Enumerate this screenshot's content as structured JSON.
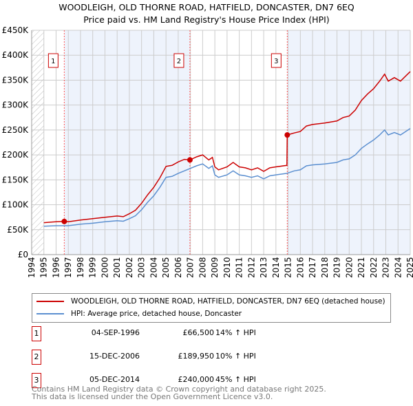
{
  "title": "WOODLEIGH, OLD THORNE ROAD, HATFIELD, DONCASTER, DN7 6EQ",
  "subtitle": "Price paid vs. HM Land Registry's House Price Index (HPI)",
  "colors": {
    "property": "#cc0000",
    "hpi": "#5b8fd0",
    "shade": "#eef3fc",
    "grid": "#cccccc"
  },
  "chart_data": {
    "type": "line",
    "title": "Price paid vs. HM Land Registry's House Price Index (HPI)",
    "xlim": [
      1994,
      2025
    ],
    "ylim": [
      0,
      450000
    ],
    "yticks": [
      0,
      50000,
      100000,
      150000,
      200000,
      250000,
      300000,
      350000,
      400000,
      450000
    ],
    "ytick_labels": [
      "£0",
      "£50K",
      "£100K",
      "£150K",
      "£200K",
      "£250K",
      "£300K",
      "£350K",
      "£400K",
      "£450K"
    ],
    "xticks": [
      "1994",
      "1995",
      "1996",
      "1997",
      "1998",
      "1999",
      "2000",
      "2001",
      "2002",
      "2003",
      "2004",
      "2005",
      "2006",
      "2007",
      "2008",
      "2009",
      "2010",
      "2011",
      "2012",
      "2013",
      "2014",
      "2015",
      "2016",
      "2017",
      "2018",
      "2019",
      "2020",
      "2021",
      "2022",
      "2023",
      "2024",
      "2025"
    ],
    "grid": true,
    "series": [
      {
        "name": "WOODLEIGH, OLD THORNE ROAD, HATFIELD, DONCASTER, DN7 6EQ (detached house)",
        "color": "#cc0000",
        "x": [
          1995,
          1995.5,
          1996,
          1996.67,
          1997,
          1998,
          1999,
          2000,
          2001,
          2001.5,
          2002,
          2002.5,
          2003,
          2003.5,
          2004,
          2004.5,
          2005,
          2005.5,
          2006,
          2006.5,
          2006.96,
          2007.5,
          2008,
          2008.5,
          2008.8,
          2009,
          2009.3,
          2010,
          2010.5,
          2011,
          2011.5,
          2012,
          2012.5,
          2013,
          2013.5,
          2014,
          2014.9,
          2014.93,
          2015.5,
          2016,
          2016.5,
          2017,
          2018,
          2019,
          2019.5,
          2020,
          2020.5,
          2021,
          2021.5,
          2022,
          2022.5,
          2022.9,
          2023.2,
          2023.7,
          2024.2,
          2024.7,
          2025
        ],
        "y": [
          64000,
          65000,
          66000,
          66500,
          66000,
          69500,
          72000,
          75000,
          77500,
          76000,
          82000,
          89000,
          103000,
          120000,
          135000,
          154000,
          177000,
          179000,
          186000,
          191000,
          189950,
          196000,
          200000,
          190000,
          195000,
          176000,
          170000,
          176000,
          185000,
          176000,
          174000,
          170000,
          174000,
          167000,
          174000,
          176000,
          179000,
          240000,
          244000,
          247000,
          258000,
          261000,
          264000,
          268000,
          275000,
          278000,
          290000,
          309000,
          322000,
          333000,
          348000,
          362000,
          348000,
          355000,
          348000,
          360000,
          367000
        ]
      },
      {
        "name": "HPI: Average price, detached house, Doncaster",
        "color": "#5b8fd0",
        "x": [
          1995,
          1996,
          1996.67,
          1997,
          1998,
          1999,
          2000,
          2001,
          2001.5,
          2002,
          2002.5,
          2003,
          2003.5,
          2004,
          2004.5,
          2005,
          2005.5,
          2006,
          2006.5,
          2007,
          2007.5,
          2008,
          2008.5,
          2008.8,
          2009,
          2009.3,
          2010,
          2010.5,
          2011,
          2011.5,
          2012,
          2012.5,
          2013,
          2013.5,
          2014,
          2014.9,
          2015.5,
          2016,
          2016.5,
          2017,
          2018,
          2019,
          2019.5,
          2020,
          2020.5,
          2021,
          2021.5,
          2022,
          2022.5,
          2022.9,
          2023.2,
          2023.7,
          2024.2,
          2024.7,
          2025
        ],
        "y": [
          57000,
          58000,
          58000,
          58000,
          61000,
          63000,
          66000,
          68000,
          67000,
          72000,
          78000,
          90000,
          105000,
          118000,
          135000,
          155000,
          157000,
          163000,
          168000,
          173000,
          178000,
          182000,
          173000,
          178000,
          160000,
          155000,
          160000,
          168000,
          160000,
          158000,
          155000,
          158000,
          152000,
          158000,
          160000,
          163000,
          168000,
          170000,
          178000,
          180000,
          182000,
          185000,
          190000,
          192000,
          200000,
          213000,
          222000,
          230000,
          240000,
          250000,
          240000,
          245000,
          240000,
          248000,
          253000
        ]
      }
    ],
    "sales": [
      {
        "label": "1",
        "x": 1996.67,
        "y": 66500,
        "date": "04-SEP-1996",
        "price": "£66,500",
        "hpi": "14% ↑ HPI"
      },
      {
        "label": "2",
        "x": 2006.96,
        "y": 189950,
        "date": "15-DEC-2006",
        "price": "£189,950",
        "hpi": "10% ↑ HPI"
      },
      {
        "label": "3",
        "x": 2014.93,
        "y": 240000,
        "date": "05-DEC-2014",
        "price": "£240,000",
        "hpi": "45% ↑ HPI"
      }
    ],
    "legend_placement": "below"
  },
  "legend": {
    "property": "WOODLEIGH, OLD THORNE ROAD, HATFIELD, DONCASTER, DN7 6EQ (detached house)",
    "hpi": "HPI: Average price, detached house, Doncaster"
  },
  "footer": {
    "line1": "Contains HM Land Registry data © Crown copyright and database right 2025.",
    "line2": "This data is licensed under the Open Government Licence v3.0."
  }
}
